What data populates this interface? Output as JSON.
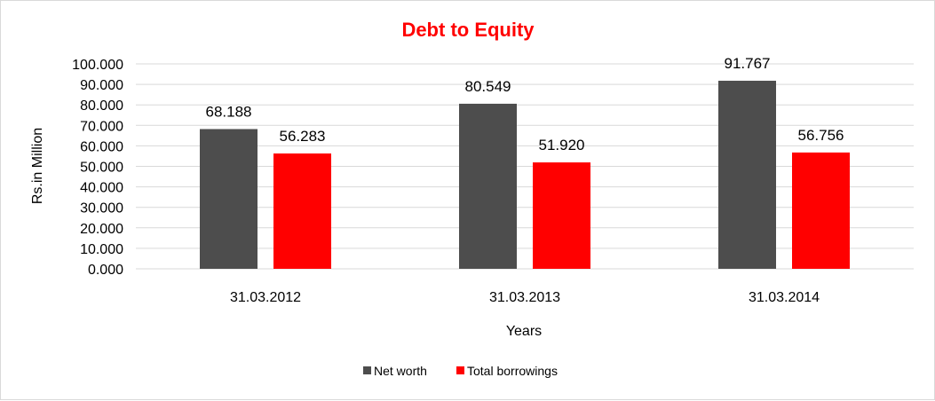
{
  "chart_data": {
    "type": "bar",
    "title": "Debt to Equity",
    "title_color": "#ff0000",
    "xlabel": "Years",
    "ylabel": "Rs.in Million",
    "categories": [
      "31.03.2012",
      "31.03.2013",
      "31.03.2014"
    ],
    "series": [
      {
        "name": "Net worth",
        "color": "#4d4d4d",
        "values": [
          68.188,
          80.549,
          91.767
        ]
      },
      {
        "name": "Total borrowings",
        "color": "#ff0000",
        "values": [
          56.283,
          51.92,
          56.756
        ]
      }
    ],
    "ylim": [
      0,
      100
    ],
    "ytick_step": 10,
    "yticks": [
      "0.000",
      "10.000",
      "20.000",
      "30.000",
      "40.000",
      "50.000",
      "60.000",
      "70.000",
      "80.000",
      "90.000",
      "100.000"
    ],
    "data_labels": [
      [
        "68.188",
        "80.549",
        "91.767"
      ],
      [
        "56.283",
        "51.920",
        "56.756"
      ]
    ],
    "grid": true,
    "legend_position": "bottom"
  }
}
